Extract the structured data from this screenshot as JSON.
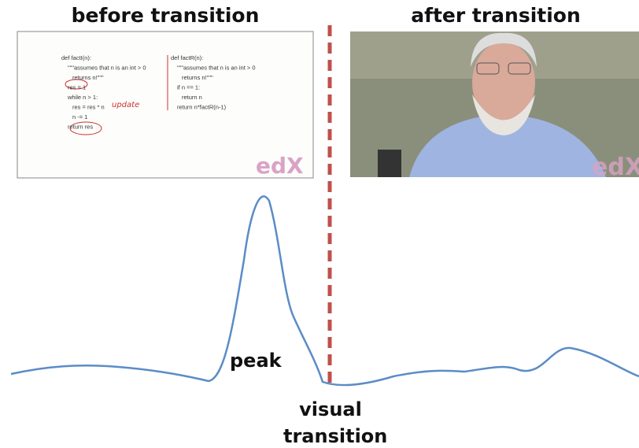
{
  "left_panel": {
    "title": "before transition",
    "code_left": [
      "def factI(n):",
      "\"\"\"assumes that n is an int > 0",
      "returns n!\"\"\"",
      "res = 1",
      "while n > 1:",
      "res = res * n",
      "n -= 1",
      "return res"
    ],
    "code_right": [
      "def factR(n):",
      "\"\"\"assumes that n is an int > 0",
      "returns n!\"\"\"",
      "if n == 1:",
      "return n",
      "return n*factR(n-1)"
    ],
    "annotation": "update",
    "logo": "edX"
  },
  "right_panel": {
    "title": "after transition",
    "logo": "edX"
  },
  "labels": {
    "peak": "peak",
    "transition": "visual transition"
  }
}
